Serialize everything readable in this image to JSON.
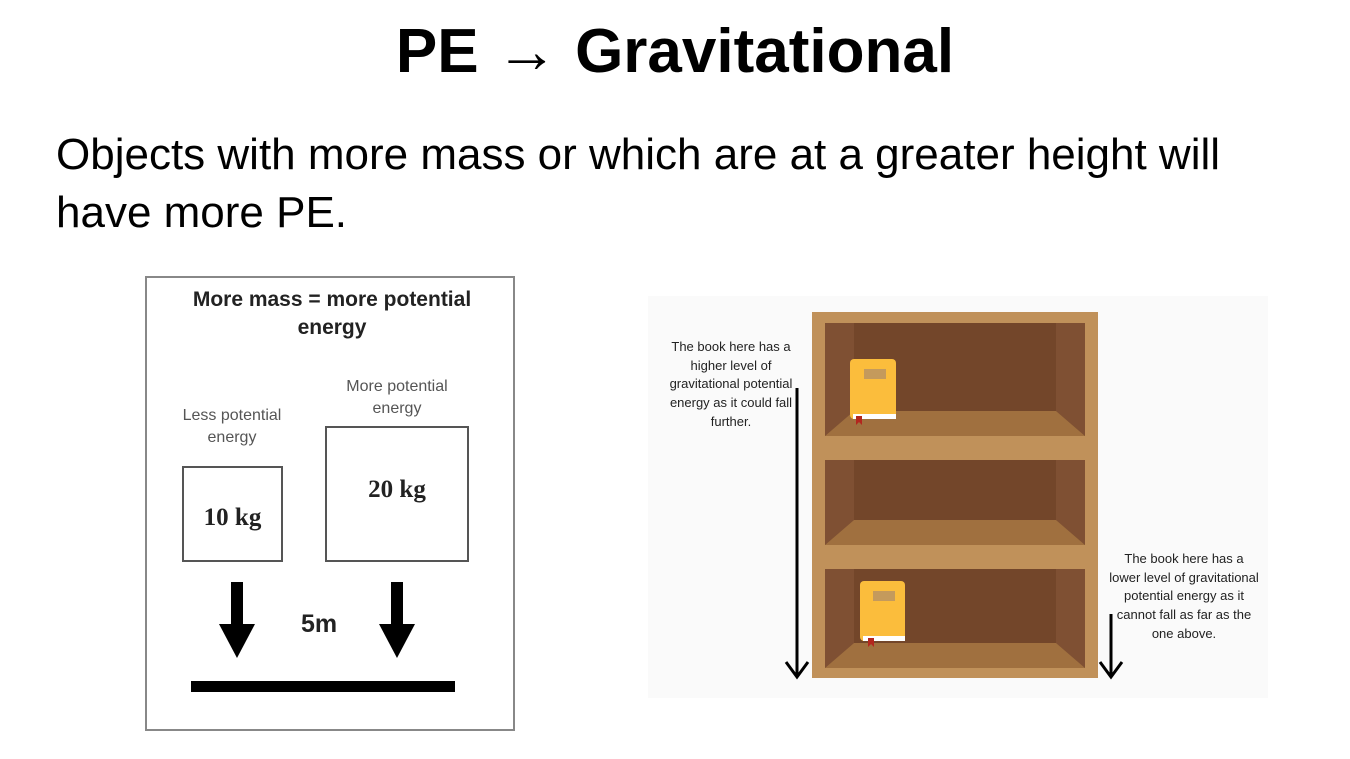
{
  "slide": {
    "title": "PE →  Gravitational",
    "body": "Objects with more mass or which are at a greater height will have more PE."
  },
  "mass_figure": {
    "title": "More mass = more potential energy",
    "less_label": "Less potential energy",
    "more_label": "More potential energy",
    "small_mass": "10 kg",
    "large_mass": "20 kg",
    "height": "5m"
  },
  "height_figure": {
    "top_note": "The book here has a higher level of gravitational potential energy as it could fall further.",
    "bottom_note": "The book here has a lower level of gravitational potential energy as it cannot fall as far as the one above.",
    "colors": {
      "frame": "#c0915a",
      "back": "#73462a",
      "side": "#7f5033",
      "floor": "#a0703f",
      "book": "#fbbd3c"
    }
  }
}
